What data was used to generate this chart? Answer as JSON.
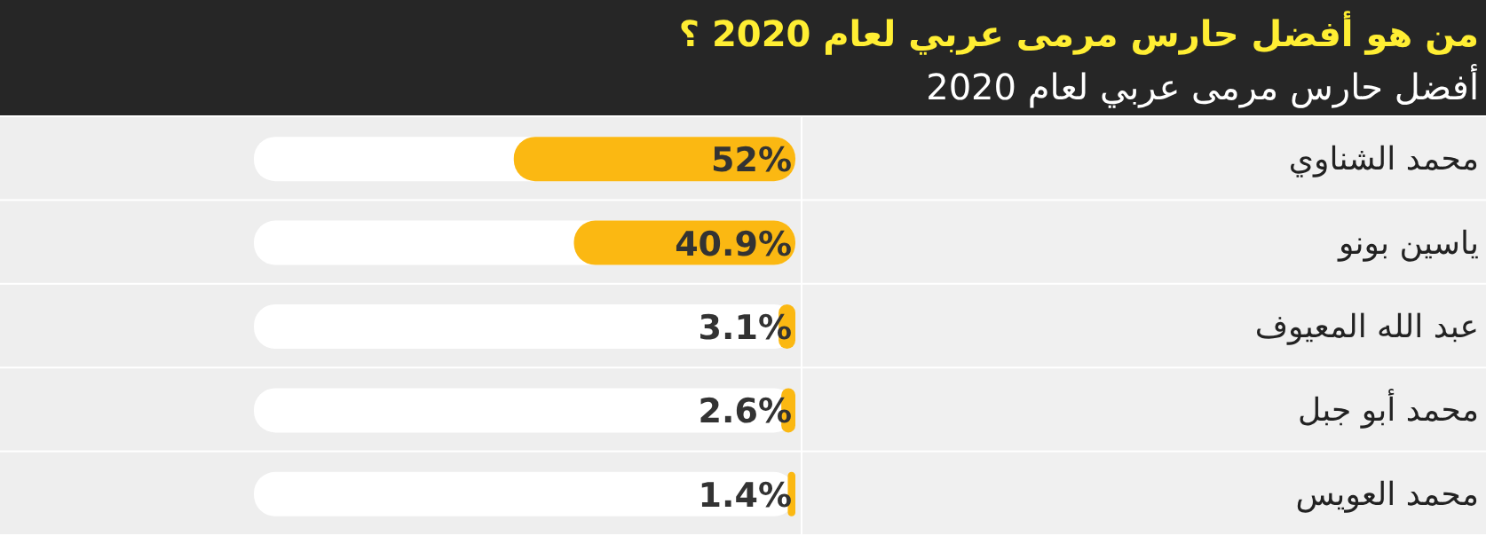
{
  "chart_data": {
    "type": "bar",
    "orientation": "horizontal",
    "title": "من هو أفضل حارس مرمى عربي لعام 2020 ؟",
    "subtitle": "أفضل حارس مرمى عربي لعام 2020",
    "categories": [
      "محمد الشناوي",
      "ياسين بونو",
      "عبد الله المعيوف",
      "محمد أبو جبل",
      "محمد العويس"
    ],
    "values": [
      52,
      40.9,
      3.1,
      2.6,
      1.4
    ],
    "value_labels": [
      "52%",
      "40.9%",
      "3.1%",
      "2.6%",
      "1.4%"
    ],
    "color": "#fbb812",
    "xlim": [
      100,
      0
    ]
  }
}
